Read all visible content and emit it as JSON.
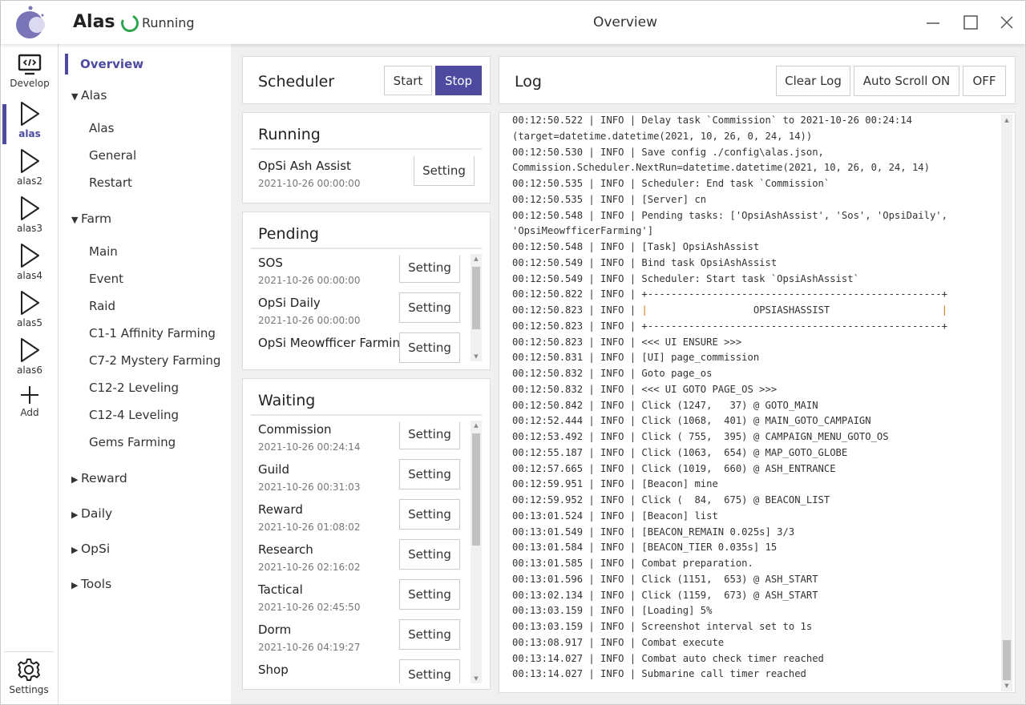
{
  "header": {
    "app_title": "Alas",
    "status": "Running",
    "page_title": "Overview",
    "status_color": "#2ea44f",
    "accent": "#4d4aa0"
  },
  "iconbar": {
    "items": [
      {
        "label": "Develop",
        "icon": "monitor-code-icon"
      },
      {
        "label": "alas",
        "icon": "play-icon",
        "active": true
      },
      {
        "label": "alas2",
        "icon": "play-icon"
      },
      {
        "label": "alas3",
        "icon": "play-icon"
      },
      {
        "label": "alas4",
        "icon": "play-icon"
      },
      {
        "label": "alas5",
        "icon": "play-icon"
      },
      {
        "label": "alas6",
        "icon": "play-icon"
      },
      {
        "label": "Add",
        "icon": "plus-icon"
      }
    ],
    "settings": "Settings"
  },
  "nav": {
    "overview": "Overview",
    "groups": [
      {
        "label": "Alas",
        "expanded": true,
        "items": [
          "Alas",
          "General",
          "Restart"
        ]
      },
      {
        "label": "Farm",
        "expanded": true,
        "items": [
          "Main",
          "Event",
          "Raid",
          "C1-1 Affinity Farming",
          "C7-2 Mystery Farming",
          "C12-2 Leveling",
          "C12-4 Leveling",
          "Gems Farming"
        ]
      },
      {
        "label": "Reward",
        "expanded": false
      },
      {
        "label": "Daily",
        "expanded": false
      },
      {
        "label": "OpSi",
        "expanded": false
      },
      {
        "label": "Tools",
        "expanded": false
      }
    ]
  },
  "scheduler": {
    "title": "Scheduler",
    "start": "Start",
    "stop": "Stop"
  },
  "running": {
    "title": "Running",
    "tasks": [
      {
        "name": "OpSi Ash Assist",
        "time": "2021-10-26 00:00:00"
      }
    ]
  },
  "pending": {
    "title": "Pending",
    "tasks": [
      {
        "name": "SOS",
        "time": "2021-10-26 00:00:00"
      },
      {
        "name": "OpSi Daily",
        "time": "2021-10-26 00:00:00"
      },
      {
        "name": "OpSi Meowfficer Farming",
        "time": ""
      }
    ]
  },
  "waiting": {
    "title": "Waiting",
    "tasks": [
      {
        "name": "Commission",
        "time": "2021-10-26 00:24:14"
      },
      {
        "name": "Guild",
        "time": "2021-10-26 00:31:03"
      },
      {
        "name": "Reward",
        "time": "2021-10-26 01:08:02"
      },
      {
        "name": "Research",
        "time": "2021-10-26 02:16:02"
      },
      {
        "name": "Tactical",
        "time": "2021-10-26 02:45:50"
      },
      {
        "name": "Dorm",
        "time": "2021-10-26 04:19:27"
      },
      {
        "name": "Shop",
        "time": ""
      }
    ]
  },
  "setting_label": "Setting",
  "log": {
    "title": "Log",
    "clear": "Clear Log",
    "autoscroll_on": "Auto Scroll ON",
    "off": "OFF",
    "lines": [
      "00:12:50.522 | INFO | Delay task `Commission` to 2021-10-26 00:24:14",
      "(target=datetime.datetime(2021, 10, 26, 0, 24, 14))",
      "00:12:50.530 | INFO | Save config ./config\\alas.json,",
      "Commission.Scheduler.NextRun=datetime.datetime(2021, 10, 26, 0, 24, 14)",
      "00:12:50.535 | INFO | Scheduler: End task `Commission`",
      "00:12:50.535 | INFO | [Server] cn",
      "00:12:50.548 | INFO | Pending tasks: ['OpsiAshAssist', 'Sos', 'OpsiDaily',",
      "'OpsiMeowfficerFarming']",
      "00:12:50.548 | INFO | [Task] OpsiAshAssist",
      "00:12:50.549 | INFO | Bind task OpsiAshAssist",
      "00:12:50.549 | INFO | Scheduler: Start task `OpsiAshAssist`",
      "00:12:50.822 | INFO | +--------------------------------------------------+",
      "00:12:50.823 | INFO | |                  OPSIASHASSIST                   |",
      "00:12:50.823 | INFO | +--------------------------------------------------+",
      "00:12:50.823 | INFO | <<< UI ENSURE >>>",
      "00:12:50.831 | INFO | [UI] page_commission",
      "00:12:50.832 | INFO | Goto page_os",
      "00:12:50.832 | INFO | <<< UI GOTO PAGE_OS >>>",
      "00:12:50.842 | INFO | Click (1247,   37) @ GOTO_MAIN",
      "00:12:52.444 | INFO | Click (1068,  401) @ MAIN_GOTO_CAMPAIGN",
      "00:12:53.492 | INFO | Click ( 755,  395) @ CAMPAIGN_MENU_GOTO_OS",
      "00:12:55.187 | INFO | Click (1063,  654) @ MAP_GOTO_GLOBE",
      "00:12:57.665 | INFO | Click (1019,  660) @ ASH_ENTRANCE",
      "00:12:59.951 | INFO | [Beacon] mine",
      "00:12:59.952 | INFO | Click (  84,  675) @ BEACON_LIST",
      "00:13:01.524 | INFO | [Beacon] list",
      "00:13:01.549 | INFO | [BEACON_REMAIN 0.025s] 3/3",
      "00:13:01.584 | INFO | [BEACON_TIER 0.035s] 15",
      "00:13:01.585 | INFO | Combat preparation.",
      "00:13:01.596 | INFO | Click (1151,  653) @ ASH_START",
      "00:13:02.134 | INFO | Click (1159,  673) @ ASH_START",
      "00:13:03.159 | INFO | [Loading] 5%",
      "00:13:03.159 | INFO | Screenshot interval set to 1s",
      "00:13:08.917 | INFO | Combat execute",
      "00:13:14.027 | INFO | Combat auto check timer reached",
      "00:13:14.027 | INFO | Submarine call timer reached"
    ]
  }
}
